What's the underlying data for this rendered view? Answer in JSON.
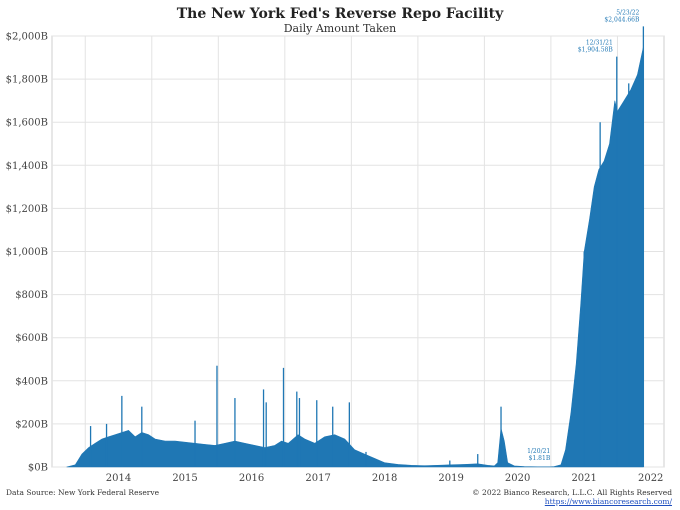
{
  "chart_data": {
    "type": "area",
    "title": "The New York Fed's Reverse Repo Facility",
    "subtitle": "Daily Amount Taken",
    "xlabel": "",
    "ylabel": "",
    "x_tick_labels": [
      "2014",
      "2015",
      "2016",
      "2017",
      "2018",
      "2019",
      "2020",
      "2021",
      "2022"
    ],
    "y_tick_labels": [
      "$0B",
      "$200B",
      "$400B",
      "$600B",
      "$800B",
      "$1,000B",
      "$1,200B",
      "$1,400B",
      "$1,600B",
      "$1,800B",
      "$2,000B"
    ],
    "ylim": [
      0,
      2000
    ],
    "xlim": [
      2013.5,
      2022.7
    ],
    "grid": true,
    "series": [
      {
        "color": "#1f77b4",
        "points": [
          [
            2013.72,
            0
          ],
          [
            2013.85,
            10
          ],
          [
            2013.95,
            60
          ],
          [
            2014.05,
            90
          ],
          [
            2014.15,
            110
          ],
          [
            2014.25,
            130
          ],
          [
            2014.35,
            140
          ],
          [
            2014.45,
            150
          ],
          [
            2014.55,
            160
          ],
          [
            2014.65,
            170
          ],
          [
            2014.75,
            140
          ],
          [
            2014.85,
            160
          ],
          [
            2014.95,
            150
          ],
          [
            2015.05,
            130
          ],
          [
            2015.2,
            120
          ],
          [
            2015.35,
            120
          ],
          [
            2015.5,
            115
          ],
          [
            2015.65,
            110
          ],
          [
            2015.8,
            105
          ],
          [
            2015.95,
            100
          ],
          [
            2016.1,
            110
          ],
          [
            2016.25,
            120
          ],
          [
            2016.4,
            110
          ],
          [
            2016.55,
            100
          ],
          [
            2016.7,
            90
          ],
          [
            2016.85,
            100
          ],
          [
            2016.95,
            120
          ],
          [
            2017.05,
            110
          ],
          [
            2017.2,
            150
          ],
          [
            2017.3,
            130
          ],
          [
            2017.45,
            110
          ],
          [
            2017.6,
            140
          ],
          [
            2017.75,
            150
          ],
          [
            2017.9,
            130
          ],
          [
            2018.05,
            80
          ],
          [
            2018.2,
            60
          ],
          [
            2018.35,
            40
          ],
          [
            2018.5,
            20
          ],
          [
            2018.7,
            12
          ],
          [
            2018.9,
            8
          ],
          [
            2019.1,
            6
          ],
          [
            2019.3,
            8
          ],
          [
            2019.5,
            10
          ],
          [
            2019.7,
            12
          ],
          [
            2019.9,
            15
          ],
          [
            2020.05,
            8
          ],
          [
            2020.15,
            5
          ],
          [
            2020.2,
            20
          ],
          [
            2020.25,
            180
          ],
          [
            2020.3,
            120
          ],
          [
            2020.35,
            20
          ],
          [
            2020.45,
            5
          ],
          [
            2020.6,
            2
          ],
          [
            2020.8,
            1
          ],
          [
            2021.0,
            1
          ],
          [
            2021.05,
            2
          ],
          [
            2021.15,
            10
          ],
          [
            2021.22,
            80
          ],
          [
            2021.3,
            250
          ],
          [
            2021.38,
            480
          ],
          [
            2021.45,
            760
          ],
          [
            2021.5,
            1000
          ],
          [
            2021.58,
            1150
          ],
          [
            2021.65,
            1300
          ],
          [
            2021.72,
            1380
          ],
          [
            2021.8,
            1420
          ],
          [
            2021.88,
            1500
          ],
          [
            2021.96,
            1700
          ],
          [
            2022.0,
            1650
          ],
          [
            2022.1,
            1700
          ],
          [
            2022.2,
            1750
          ],
          [
            2022.3,
            1820
          ],
          [
            2022.39,
            1950
          ]
        ],
        "spikes": [
          [
            2014.08,
            190
          ],
          [
            2014.32,
            200
          ],
          [
            2014.55,
            330
          ],
          [
            2014.85,
            280
          ],
          [
            2015.65,
            215
          ],
          [
            2015.98,
            470
          ],
          [
            2016.25,
            320
          ],
          [
            2016.68,
            360
          ],
          [
            2016.72,
            300
          ],
          [
            2016.98,
            460
          ],
          [
            2017.18,
            350
          ],
          [
            2017.22,
            320
          ],
          [
            2017.48,
            310
          ],
          [
            2017.72,
            280
          ],
          [
            2017.97,
            300
          ],
          [
            2018.22,
            70
          ],
          [
            2019.48,
            30
          ],
          [
            2019.9,
            60
          ],
          [
            2020.25,
            280
          ],
          [
            2021.22,
            70
          ],
          [
            2021.5,
            1000
          ],
          [
            2021.74,
            1600
          ],
          [
            2021.99,
            1904.58
          ],
          [
            2022.17,
            1780
          ],
          [
            2022.39,
            2044.66
          ]
        ]
      }
    ],
    "annotations": [
      {
        "date_label": "1/20/21",
        "value_label": "$1.81B",
        "x": 2021.05,
        "y": 1.81
      },
      {
        "date_label": "12/31/21",
        "value_label": "$1,904.58B",
        "x": 2021.99,
        "y": 1904.58
      },
      {
        "date_label": "5/23/22",
        "value_label": "$2,044.66B",
        "x": 2022.39,
        "y": 2044.66
      }
    ]
  },
  "footer": {
    "source": "Data Source: New York Federal Reserve",
    "copyright": "© 2022 Bianco Research, L.L.C. All Rights Reserved",
    "url": "https://www.biancoresearch.com/"
  },
  "colors": {
    "series": "#1f77b4",
    "grid": "#e3e3e3",
    "annotation": "#1f77b4"
  }
}
